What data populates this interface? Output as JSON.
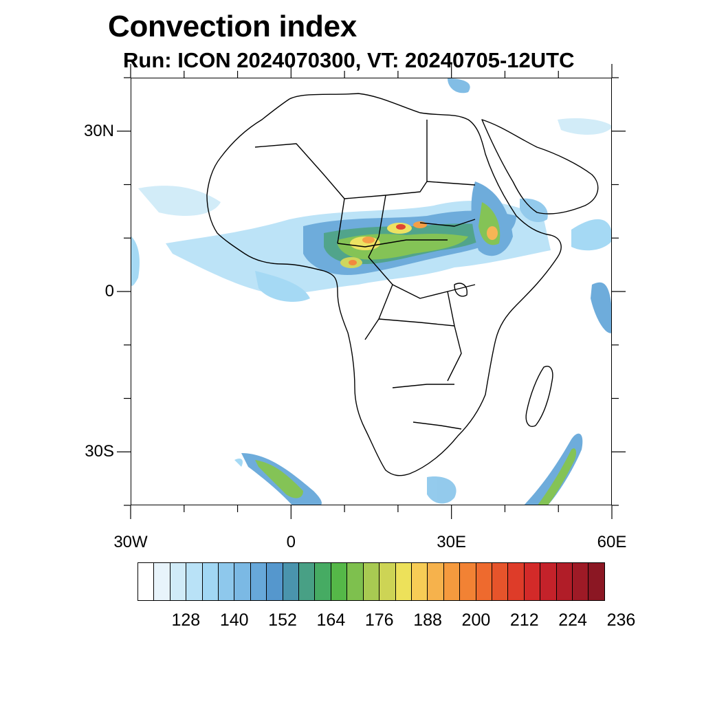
{
  "title": "Convection index",
  "subtitle": "Run: ICON 2024070300,  VT: 20240705-12UTC",
  "map": {
    "lon_range": [
      -30,
      60
    ],
    "lat_range": [
      -40,
      40
    ],
    "lat_ticks": [
      {
        "value": 30,
        "label": "30N"
      },
      {
        "value": 0,
        "label": "0"
      },
      {
        "value": -30,
        "label": "30S"
      }
    ],
    "lon_ticks": [
      {
        "value": -30,
        "label": "30W"
      },
      {
        "value": 0,
        "label": "0"
      },
      {
        "value": 30,
        "label": "30E"
      },
      {
        "value": 60,
        "label": "60E"
      }
    ],
    "minor_lat_ticks": [
      40,
      20,
      10,
      -10,
      -20,
      -40
    ],
    "minor_lon_ticks": [
      -20,
      -10,
      10,
      20,
      40,
      50
    ]
  },
  "colorbar": {
    "colors": [
      "#ffffff",
      "#e8f4fb",
      "#d0ebf8",
      "#b9e2f7",
      "#a1d7f4",
      "#8ec8ec",
      "#7bb9e4",
      "#67a8da",
      "#5597cd",
      "#4a94ad",
      "#48a085",
      "#46ab63",
      "#55b848",
      "#7ec04e",
      "#a8ca52",
      "#cdd455",
      "#ede15a",
      "#f7cc56",
      "#f6b24c",
      "#f59a3e",
      "#f28234",
      "#ee6a2e",
      "#e6542b",
      "#de3c29",
      "#d32a29",
      "#c4222a",
      "#b11d28",
      "#9e1a26",
      "#8b1723"
    ],
    "labels": [
      "128",
      "140",
      "152",
      "164",
      "176",
      "188",
      "200",
      "212",
      "224",
      "236"
    ]
  }
}
